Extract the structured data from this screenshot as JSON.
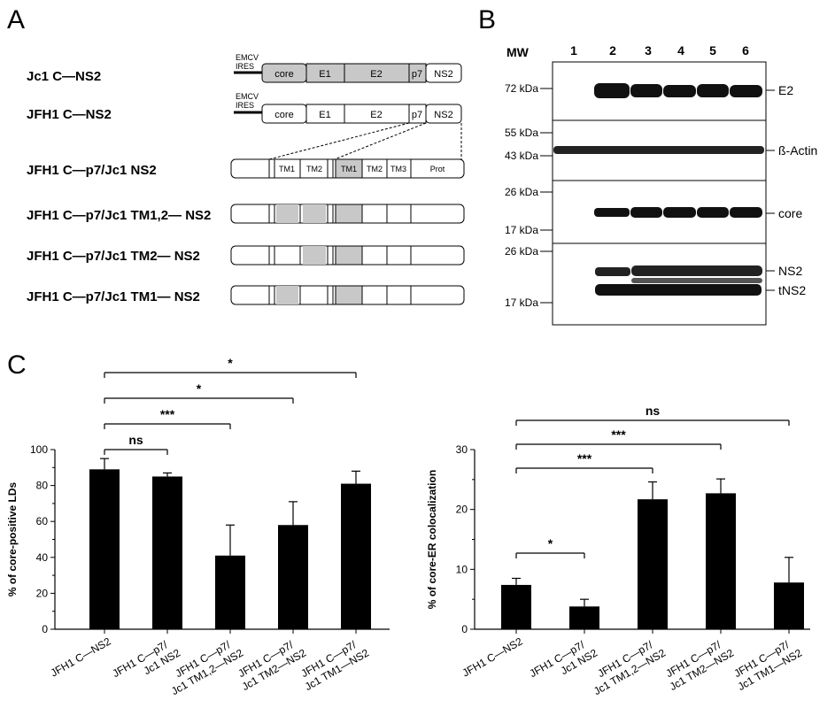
{
  "panels": {
    "a": "A",
    "b": "B",
    "c": "C"
  },
  "panel_a": {
    "constructs": [
      {
        "name": "Jc1 C—NS2",
        "emcv": "EMCV",
        "ires": "IRES"
      },
      {
        "name": "JFH1 C—NS2",
        "emcv": "EMCV",
        "ires": "IRES"
      },
      {
        "name": "JFH1 C—p7/Jc1 NS2"
      },
      {
        "name": "JFH1 C—p7/Jc1 TM1,2— NS2"
      },
      {
        "name": "JFH1 C—p7/Jc1 TM2— NS2"
      },
      {
        "name": "JFH1 C—p7/Jc1 TM1— NS2"
      }
    ],
    "segments": [
      "core",
      "E1",
      "E2",
      "p7",
      "NS2"
    ],
    "ns2_domains": [
      "TM1",
      "TM2",
      "TM1",
      "TM2",
      "TM3",
      "Prot"
    ],
    "jc1_color": "#c8c8c8",
    "jfh1_color": "#ffffff"
  },
  "panel_b": {
    "mw_header": "MW",
    "lanes": [
      "1",
      "2",
      "3",
      "4",
      "5",
      "6"
    ],
    "mw_markers": [
      "72 kDa",
      "55 kDa",
      "43 kDa",
      "26 kDa",
      "17 kDa",
      "26 kDa",
      "17 kDa"
    ],
    "band_labels": [
      "E2",
      "ß-Actin",
      "core",
      "NS2",
      "tNS2"
    ]
  },
  "chart_data": [
    {
      "type": "bar",
      "categories": [
        "JFH1 C—NS2",
        "JFH1 C—p7/ Jc1 NS2",
        "JFH1 C—p7/ Jc1 TM1,2—NS2",
        "JFH1 C—p7/ Jc1 TM2—NS2",
        "JFH1 C—p7/ Jc1 TM1—NS2"
      ],
      "category_lines": [
        [
          "JFH1 C—NS2"
        ],
        [
          "JFH1 C—p7/",
          "Jc1 NS2"
        ],
        [
          "JFH1 C—p7/",
          "Jc1 TM1,2—NS2"
        ],
        [
          "JFH1 C—p7/",
          "Jc1 TM2—NS2"
        ],
        [
          "JFH1 C—p7/",
          "Jc1 TM1—NS2"
        ]
      ],
      "values": [
        89,
        85,
        41,
        58,
        81
      ],
      "errors": [
        6,
        2,
        17,
        13,
        7
      ],
      "ylabel": "% of core-positive LDs",
      "ylim": [
        0,
        100
      ],
      "yticks": [
        0,
        20,
        40,
        60,
        80,
        100
      ],
      "significance": [
        {
          "from": 0,
          "to": 1,
          "label": "ns"
        },
        {
          "from": 0,
          "to": 2,
          "label": "***"
        },
        {
          "from": 0,
          "to": 3,
          "label": "*"
        },
        {
          "from": 0,
          "to": 4,
          "label": "*"
        }
      ]
    },
    {
      "type": "bar",
      "categories": [
        "JFH1 C—NS2",
        "JFH1 C—p7/ Jc1 NS2",
        "JFH1 C—p7/ Jc1 TM1,2—NS2",
        "JFH1 C—p7/ Jc1 TM2—NS2",
        "JFH1 C—p7/ Jc1 TM1—NS2"
      ],
      "category_lines": [
        [
          "JFH1 C—NS2"
        ],
        [
          "JFH1 C—p7/",
          "Jc1 NS2"
        ],
        [
          "JFH1 C—p7/",
          "Jc1 TM1,2—NS2"
        ],
        [
          "JFH1 C—p7/",
          "Jc1 TM2—NS2"
        ],
        [
          "JFH1 C—p7/",
          "Jc1 TM1—NS2"
        ]
      ],
      "values": [
        7.4,
        3.8,
        21.7,
        22.7,
        7.8
      ],
      "errors": [
        1.1,
        1.2,
        2.9,
        2.4,
        4.2
      ],
      "ylabel": "% of core-ER colocalization",
      "ylim": [
        0,
        30
      ],
      "yticks": [
        0,
        10,
        20,
        30
      ],
      "significance": [
        {
          "from": 0,
          "to": 1,
          "label": "*"
        },
        {
          "from": 0,
          "to": 2,
          "label": "***"
        },
        {
          "from": 0,
          "to": 3,
          "label": "***"
        },
        {
          "from": 0,
          "to": 4,
          "label": "ns"
        }
      ]
    }
  ]
}
